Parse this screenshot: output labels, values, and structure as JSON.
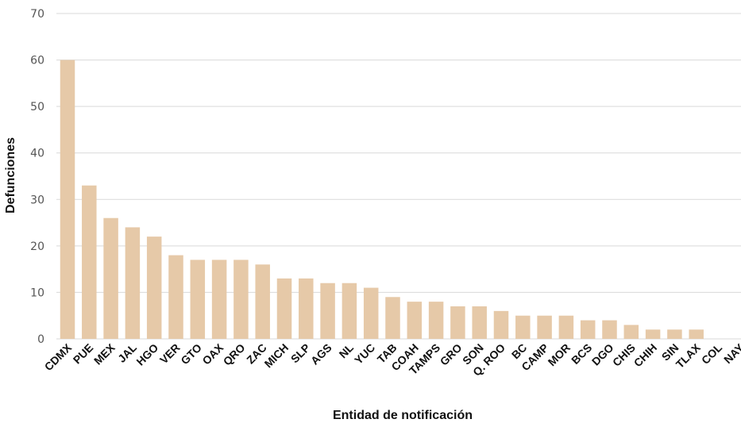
{
  "chart_data": {
    "type": "bar",
    "xlabel": "Entidad de notificación",
    "ylabel": "Defunciones",
    "ylim": [
      0,
      70
    ],
    "yticks": [
      0,
      10,
      20,
      30,
      40,
      50,
      60,
      70
    ],
    "grid": true,
    "bar_color": "#e6c9a8",
    "categories": [
      "CDMX",
      "PUE",
      "MEX",
      "JAL",
      "HGO",
      "VER",
      "GTO",
      "OAX",
      "QRO",
      "ZAC",
      "MICH",
      "SLP",
      "AGS",
      "NL",
      "YUC",
      "TAB",
      "COAH",
      "TAMPS",
      "GRO",
      "SON",
      "Q. ROO",
      "BC",
      "CAMP",
      "MOR",
      "BCS",
      "DGO",
      "CHIS",
      "CHIH",
      "SIN",
      "TLAX",
      "COL",
      "NAY"
    ],
    "values": [
      60,
      33,
      26,
      24,
      22,
      18,
      17,
      17,
      17,
      16,
      13,
      13,
      12,
      12,
      11,
      9,
      8,
      8,
      7,
      7,
      6,
      5,
      5,
      5,
      4,
      4,
      3,
      2,
      2,
      2,
      0,
      0
    ]
  }
}
